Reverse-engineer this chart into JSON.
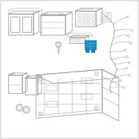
{
  "bg": "#f0f0f0",
  "card_bg": "#ffffff",
  "lc": "#909090",
  "lc2": "#aaaaaa",
  "hl": "#1a8bbf",
  "lw": 0.55,
  "lw_thin": 0.35,
  "lw_thick": 0.8
}
